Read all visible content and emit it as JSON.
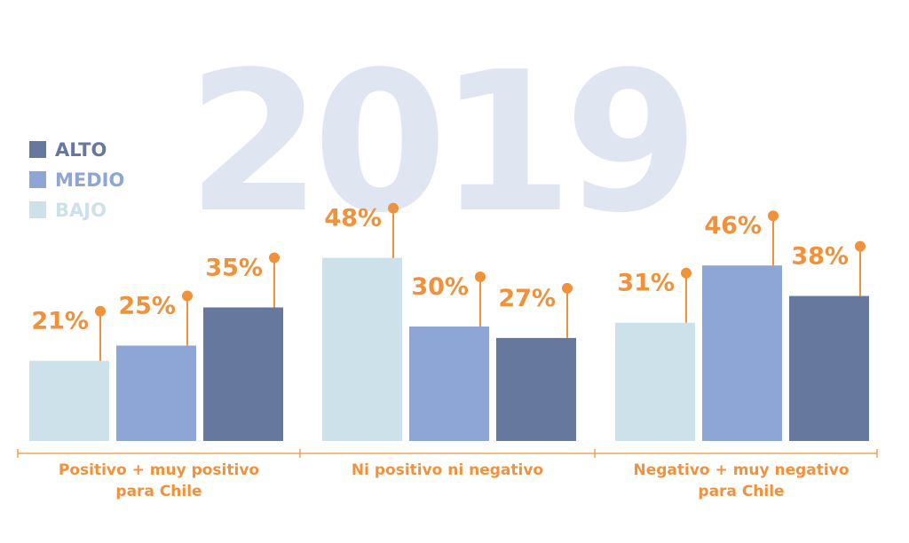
{
  "colors": {
    "alto": "#67789e",
    "medio": "#8ea6d5",
    "bajo": "#cce1ea",
    "accent": "#f0913c",
    "watermark": "#e0e6f1"
  },
  "watermark": "2019",
  "legend": [
    {
      "label": "ALTO",
      "series": "alto"
    },
    {
      "label": "MEDIO",
      "series": "medio"
    },
    {
      "label": "BAJO",
      "series": "bajo"
    }
  ],
  "chart_data": {
    "type": "bar",
    "title": "",
    "xlabel": "",
    "ylabel": "",
    "ylim": [
      0,
      50
    ],
    "legend_position": "top-left",
    "grid": false,
    "categories": [
      [
        "Positivo + muy positivo",
        "para Chile"
      ],
      [
        "Ni positivo ni negativo"
      ],
      [
        "Negativo + muy negativo",
        "para Chile"
      ]
    ],
    "groups": [
      {
        "bars": [
          {
            "series": "bajo",
            "value": 21,
            "label": "21%"
          },
          {
            "series": "medio",
            "value": 25,
            "label": "25%"
          },
          {
            "series": "alto",
            "value": 35,
            "label": "35%"
          }
        ]
      },
      {
        "bars": [
          {
            "series": "bajo",
            "value": 48,
            "label": "48%"
          },
          {
            "series": "medio",
            "value": 30,
            "label": "30%"
          },
          {
            "series": "alto",
            "value": 27,
            "label": "27%"
          }
        ]
      },
      {
        "bars": [
          {
            "series": "bajo",
            "value": 31,
            "label": "31%"
          },
          {
            "series": "medio",
            "value": 46,
            "label": "46%"
          },
          {
            "series": "alto",
            "value": 38,
            "label": "38%"
          }
        ]
      }
    ]
  }
}
